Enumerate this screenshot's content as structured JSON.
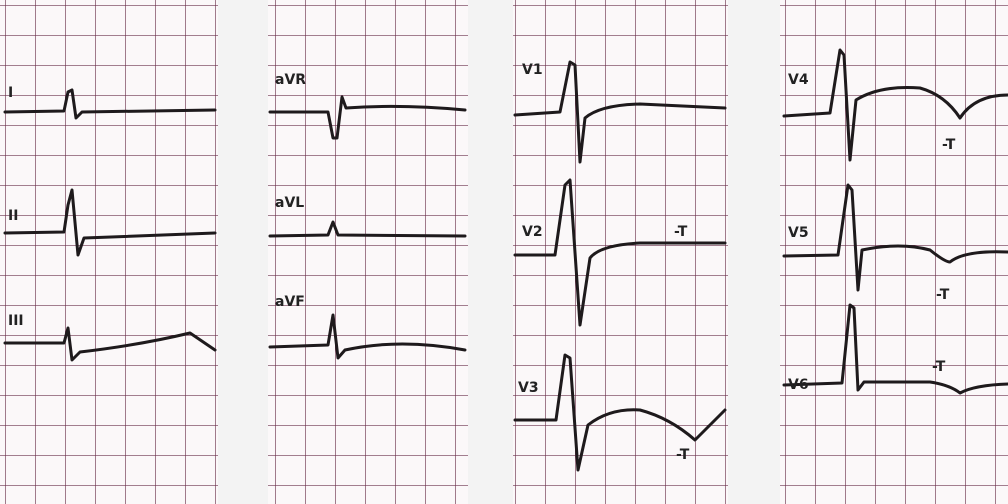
{
  "panels": [
    {
      "leads": [
        {
          "label": "I"
        },
        {
          "label": "II"
        },
        {
          "label": "III"
        }
      ]
    },
    {
      "leads": [
        {
          "label": "aVR"
        },
        {
          "label": "aVL"
        },
        {
          "label": "aVF"
        }
      ]
    },
    {
      "leads": [
        {
          "label": "V1"
        },
        {
          "label": "V2",
          "annotation": "-T"
        },
        {
          "label": "V3",
          "annotation": "-T"
        }
      ]
    },
    {
      "leads": [
        {
          "label": "V4",
          "annotation": "-T"
        },
        {
          "label": "V5",
          "annotation": "-T"
        },
        {
          "label": "V6",
          "annotation": "-T"
        }
      ]
    }
  ]
}
